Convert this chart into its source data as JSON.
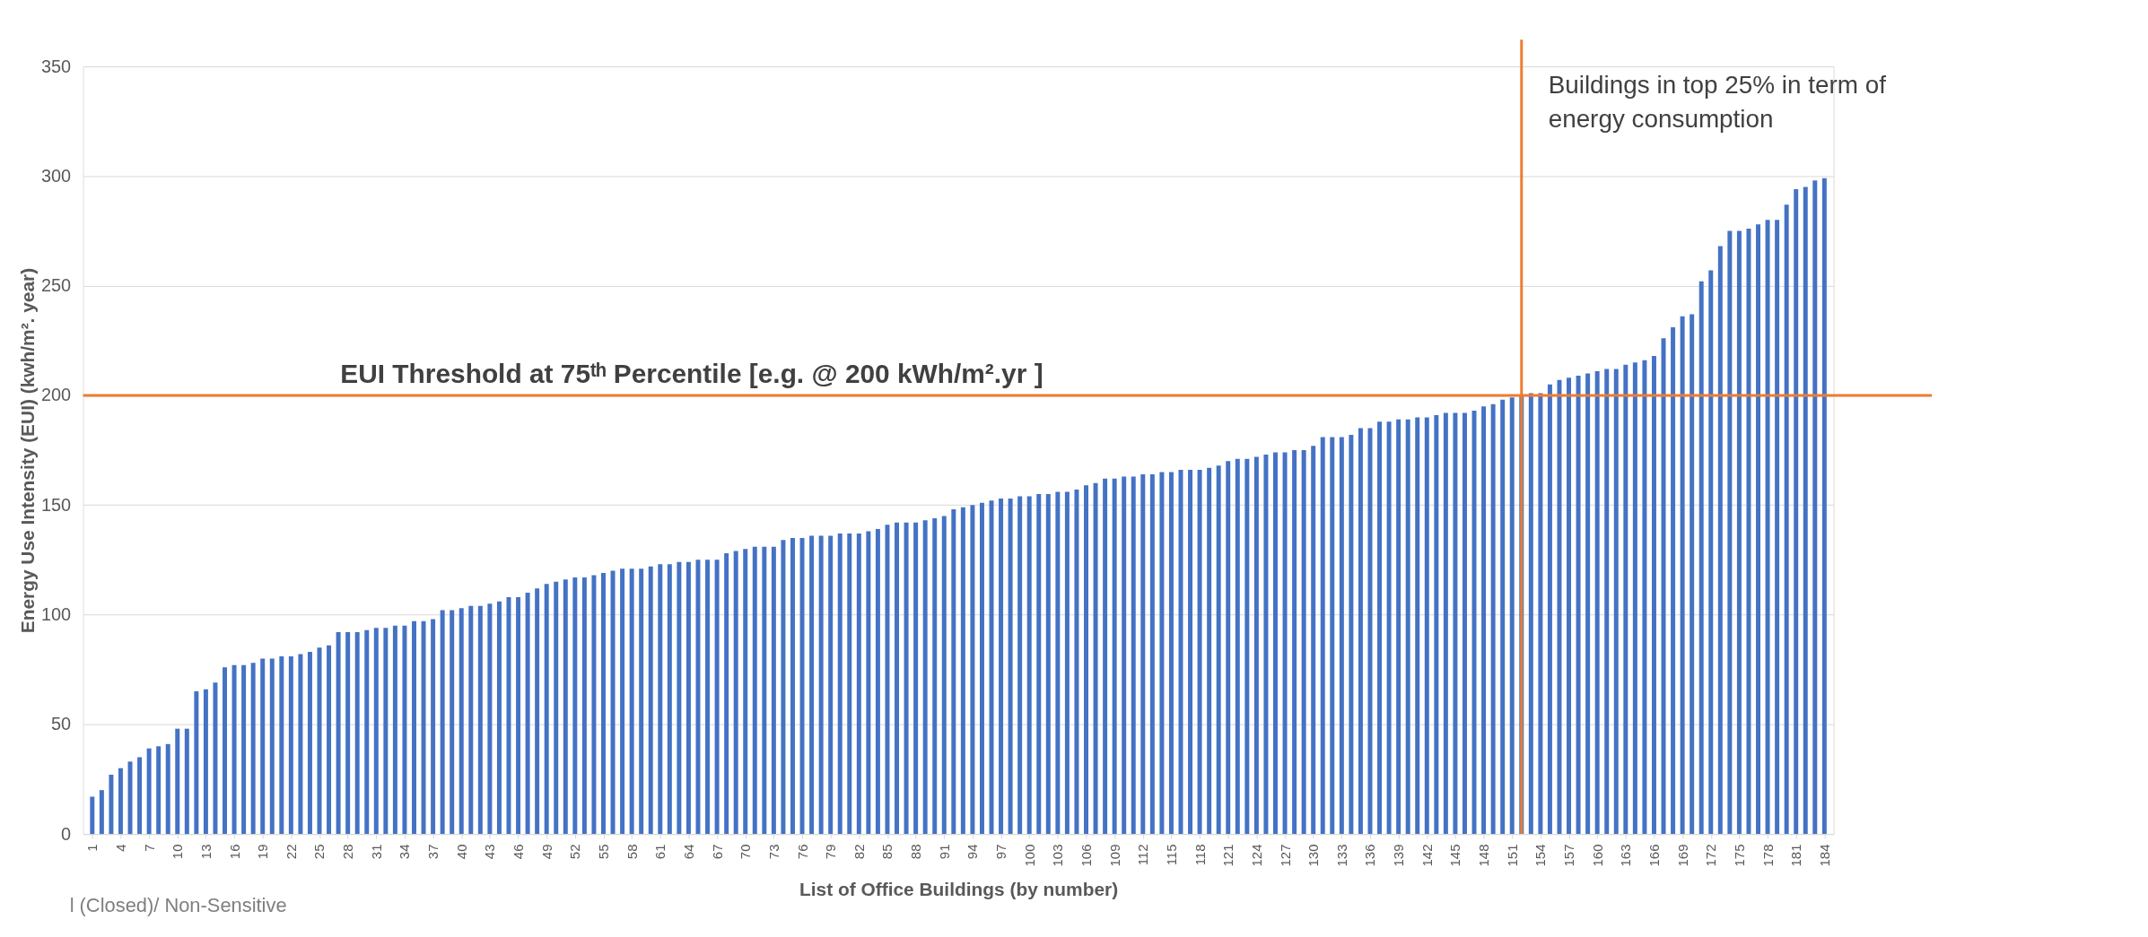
{
  "chart_data": {
    "type": "bar",
    "xlabel": "List of Office Buildings (by number)",
    "ylabel": "Energy Use Intensity (EUI) (kwh/m². year)",
    "x": [
      1,
      2,
      3,
      4,
      5,
      6,
      7,
      8,
      9,
      10,
      11,
      12,
      13,
      14,
      15,
      16,
      17,
      18,
      19,
      20,
      21,
      22,
      23,
      24,
      25,
      26,
      27,
      28,
      29,
      30,
      31,
      32,
      33,
      34,
      35,
      36,
      37,
      38,
      39,
      40,
      41,
      42,
      43,
      44,
      45,
      46,
      47,
      48,
      49,
      50,
      51,
      52,
      53,
      54,
      55,
      56,
      57,
      58,
      59,
      60,
      61,
      62,
      63,
      64,
      65,
      66,
      67,
      68,
      69,
      70,
      71,
      72,
      73,
      74,
      75,
      76,
      77,
      78,
      79,
      80,
      81,
      82,
      83,
      84,
      85,
      86,
      87,
      88,
      89,
      90,
      91,
      92,
      93,
      94,
      95,
      96,
      97,
      98,
      99,
      100,
      101,
      102,
      103,
      104,
      105,
      106,
      107,
      108,
      109,
      110,
      111,
      112,
      113,
      114,
      115,
      116,
      117,
      118,
      119,
      120,
      121,
      122,
      123,
      124,
      125,
      126,
      127,
      128,
      129,
      130,
      131,
      132,
      133,
      134,
      135,
      136,
      137,
      138,
      139,
      140,
      141,
      142,
      143,
      144,
      145,
      146,
      147,
      148,
      149,
      150,
      151,
      152,
      153,
      154,
      155,
      156,
      157,
      158,
      159,
      160,
      161,
      162,
      163,
      164,
      165,
      166,
      167,
      168,
      169,
      170,
      171,
      172,
      173,
      174,
      175,
      176,
      177,
      178,
      179,
      180,
      181,
      182,
      183,
      184
    ],
    "series": [
      {
        "color": "#4472c4",
        "values": [
          17,
          20,
          27,
          30,
          33,
          35,
          39,
          40,
          41,
          48,
          48,
          65,
          66,
          69,
          76,
          77,
          77,
          78,
          80,
          80,
          81,
          81,
          82,
          83,
          85,
          86,
          92,
          92,
          92,
          93,
          94,
          94,
          95,
          95,
          97,
          97,
          98,
          102,
          102,
          103,
          104,
          104,
          105,
          106,
          108,
          108,
          110,
          112,
          114,
          115,
          116,
          117,
          117,
          118,
          119,
          120,
          121,
          121,
          121,
          122,
          123,
          123,
          124,
          124,
          125,
          125,
          125,
          128,
          129,
          130,
          131,
          131,
          131,
          134,
          135,
          135,
          136,
          136,
          136,
          137,
          137,
          137,
          138,
          139,
          141,
          142,
          142,
          142,
          143,
          144,
          145,
          148,
          149,
          150,
          151,
          152,
          153,
          153,
          154,
          154,
          155,
          155,
          156,
          156,
          157,
          159,
          160,
          162,
          162,
          163,
          163,
          164,
          164,
          165,
          165,
          166,
          166,
          166,
          167,
          168,
          170,
          171,
          171,
          172,
          173,
          174,
          174,
          175,
          175,
          177,
          181,
          181,
          181,
          182,
          185,
          185,
          188,
          188,
          189,
          189,
          190,
          190,
          191,
          192,
          192,
          192,
          193,
          195,
          196,
          198,
          199,
          200,
          201,
          201,
          205,
          207,
          208,
          209,
          210,
          211,
          212,
          212,
          214,
          215,
          216,
          218,
          226,
          231,
          236,
          237,
          252,
          257,
          268,
          275,
          275,
          276,
          278,
          280,
          280,
          287,
          294,
          295,
          298,
          299
        ]
      }
    ],
    "xlim": [
      0.5,
      184.5
    ],
    "xticks": [
      1,
      4,
      7,
      10,
      13,
      16,
      19,
      22,
      25,
      28,
      31,
      34,
      37,
      40,
      43,
      46,
      49,
      52,
      55,
      58,
      61,
      64,
      67,
      70,
      73,
      76,
      79,
      82,
      85,
      88,
      91,
      94,
      97,
      100,
      103,
      106,
      109,
      112,
      115,
      118,
      121,
      124,
      127,
      130,
      133,
      136,
      139,
      142,
      145,
      148,
      151,
      154,
      157,
      160,
      163,
      166,
      169,
      172,
      175,
      178,
      181,
      184
    ],
    "ylim": [
      0,
      350
    ],
    "yticks": [
      0,
      50,
      100,
      150,
      200,
      250,
      300,
      350
    ],
    "grid": "y",
    "ref_lines": [
      {
        "axis": "y",
        "value": 200,
        "label": "EUI Threshold at 75ᵗʰ Percentile [e.g. @ 200 kWh/m².yr ]",
        "color": "#ed7d31"
      },
      {
        "axis": "x",
        "value": 152,
        "label": "Buildings in top 25% in term of energy consumption",
        "color": "#ed7d31"
      }
    ],
    "annotations": [
      "l (Closed)/ Non-Sensitive"
    ]
  }
}
